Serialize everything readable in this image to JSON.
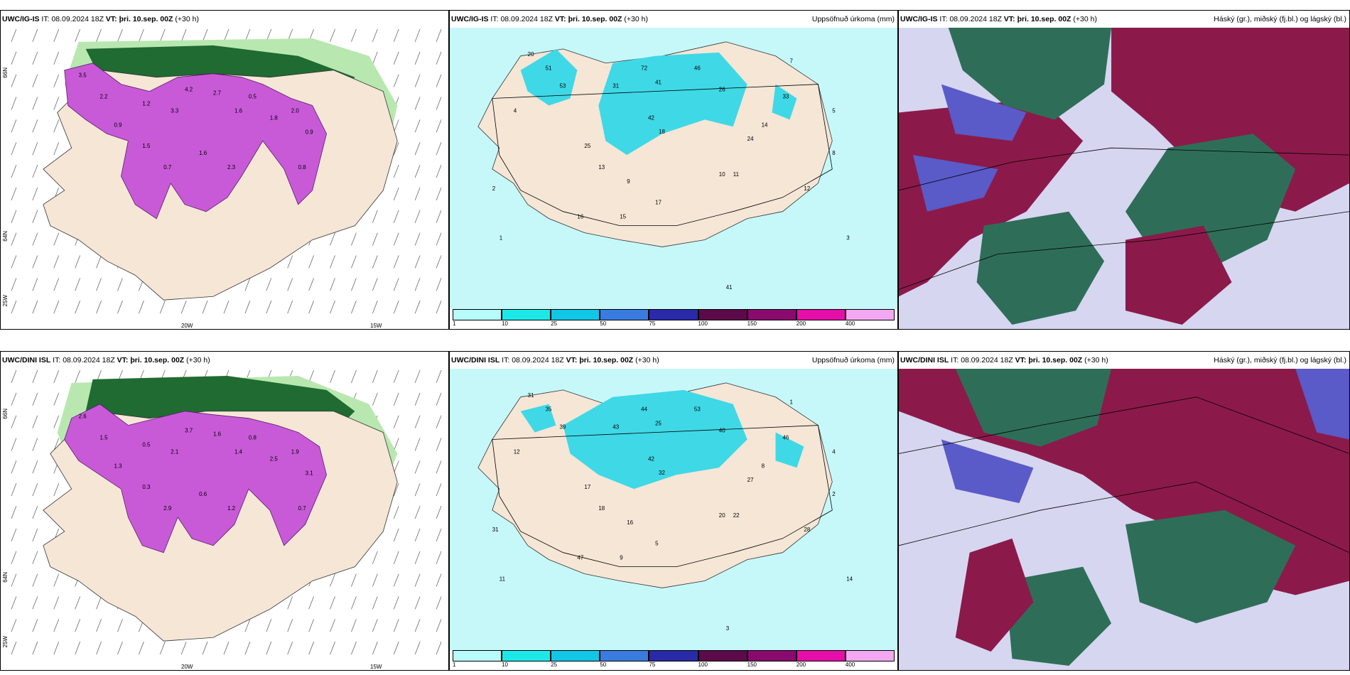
{
  "header": {
    "it_prefix": "IT:",
    "it_value": "08.09.2024 18Z",
    "vt_label": "VT: þri. 10.sep. 00Z",
    "lead": "(+30 h)"
  },
  "rows": [
    {
      "model": "UWC/IG-IS"
    },
    {
      "model": "UWC/DINI ISL"
    }
  ],
  "panel_titles": {
    "precip": "Uppsöfnuð úrkoma (mm)",
    "clouds": "Háský (gr.), miðský (fj.bl.) og lágský (bl.)"
  },
  "axis_labels": {
    "lon_20w": "20W",
    "lon_15w": "15W",
    "lon_25w": "25W",
    "lat_66n": "66N",
    "lat_64n": "64N"
  },
  "colorbar": {
    "ticks": [
      "1",
      "10",
      "25",
      "50",
      "75",
      "100",
      "150",
      "200",
      "400"
    ],
    "colors": [
      "#b8fbfb",
      "#1de8e8",
      "#12c6e6",
      "#3a7be0",
      "#2a2aa8",
      "#5c0a4a",
      "#8a0a6e",
      "#e60ea8",
      "#f2a8f0"
    ]
  },
  "colors": {
    "land": "#f5e6d6",
    "precip_light": "#c6f8fa",
    "precip_mid": "#3fd8e6",
    "snow_purple": "#c85ad8",
    "green_dark": "#1f6b32",
    "green_light": "#b8e8b0",
    "cloud_high": "#8b1a4a",
    "cloud_mid": "#2e6e58",
    "cloud_low": "#5a5ac8"
  },
  "snow_values_row1": [
    "3.5",
    "2.2",
    "0.9",
    "1.2",
    "3.3",
    "4.2",
    "2.7",
    "1.6",
    "0.5",
    "1.8",
    "2.0",
    "0.9",
    "1.5",
    "0.7",
    "1.6",
    "2.3",
    "0.8"
  ],
  "snow_values_row2": [
    "2.6",
    "1.5",
    "1.3",
    "0.5",
    "2.1",
    "3.7",
    "1.6",
    "1.4",
    "0.8",
    "2.5",
    "1.9",
    "3.1",
    "0.3",
    "2.9",
    "0.6",
    "1.2",
    "0.7"
  ],
  "precip_values_row1": [
    "20",
    "51",
    "53",
    "31",
    "72",
    "41",
    "42",
    "18",
    "46",
    "26",
    "33",
    "24",
    "11",
    "13",
    "25",
    "9",
    "10",
    "16",
    "15",
    "17",
    "41",
    "8",
    "7",
    "5",
    "4",
    "2",
    "1",
    "3",
    "14",
    "12"
  ],
  "precip_values_row2": [
    "31",
    "35",
    "39",
    "43",
    "44",
    "25",
    "42",
    "32",
    "53",
    "40",
    "46",
    "27",
    "22",
    "18",
    "17",
    "16",
    "20",
    "47",
    "9",
    "5",
    "3",
    "2",
    "1",
    "4",
    "12",
    "31",
    "11",
    "14",
    "8",
    "28"
  ]
}
